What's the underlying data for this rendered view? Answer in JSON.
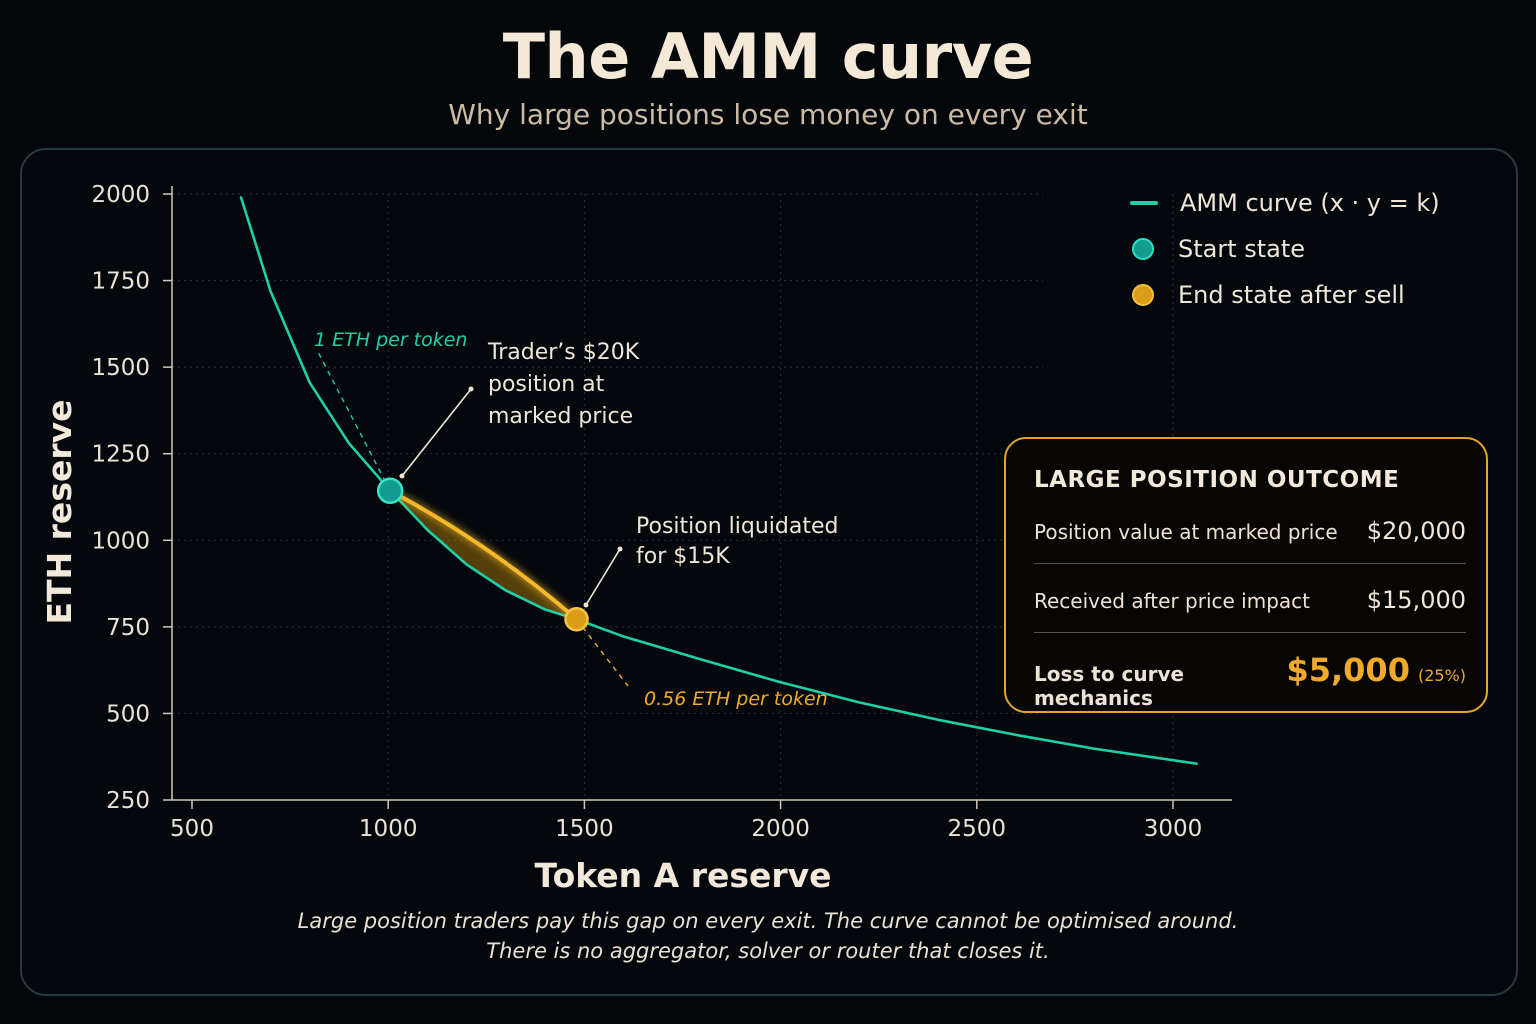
{
  "header": {
    "title": "The AMM curve",
    "subtitle": "Why large positions lose money on every exit"
  },
  "chart_data": {
    "type": "line",
    "xlabel": "Token A reserve",
    "ylabel": "ETH reserve",
    "xlim": [
      500,
      3000
    ],
    "ylim": [
      250,
      2000
    ],
    "x_ticks": [
      "500",
      "1000",
      "1500",
      "2000",
      "2500",
      "3000"
    ],
    "y_ticks": [
      "2000",
      "1750",
      "1500",
      "1250",
      "1000",
      "750",
      "500",
      "250"
    ],
    "grid": true,
    "legend_position": "top-right",
    "series": [
      {
        "name": "AMM curve (x · y = k)",
        "color": "#1fcfa8",
        "x": [
          625,
          700,
          800,
          900,
          1000,
          1100,
          1200,
          1300,
          1400,
          1480,
          1600,
          1800,
          2000,
          2200,
          2400,
          2600,
          2800,
          3060
        ],
        "y": [
          1990,
          1720,
          1455,
          1280,
          1150,
          1030,
          930,
          855,
          800,
          772,
          722,
          655,
          590,
          532,
          482,
          438,
          398,
          355
        ]
      }
    ],
    "points": [
      {
        "name": "Start state",
        "x": 1005,
        "y": 1143,
        "color": "#149c8e"
      },
      {
        "name": "End state after sell",
        "x": 1480,
        "y": 772,
        "color": "#d99d18"
      }
    ],
    "annotations": {
      "start_slope": "1 ETH per token",
      "end_slope": "0.56 ETH per token",
      "start_note": [
        "Trader’s $20K",
        "position at",
        "marked price"
      ],
      "end_note": [
        "Position liquidated",
        "for $15K"
      ]
    }
  },
  "outcome": {
    "title": "LARGE POSITION OUTCOME",
    "rows": [
      {
        "label": "Position value at marked price",
        "value": "$20,000"
      },
      {
        "label": "Received after price impact",
        "value": "$15,000"
      },
      {
        "label": "Loss to curve mechanics",
        "value": "$5,000",
        "extra": "(25%)"
      }
    ],
    "accent": "#e5a52a"
  },
  "caption": [
    "Large position traders pay this gap on every exit. The curve cannot be optimised around.",
    "There is no aggregator, solver or router that closes it."
  ]
}
